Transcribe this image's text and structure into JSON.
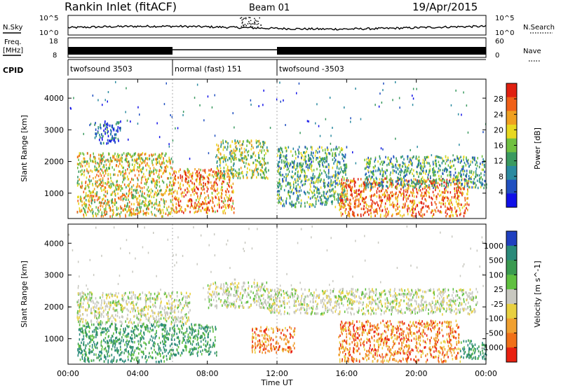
{
  "header": {
    "station": "Rankin Inlet (fitACF)",
    "beam": "Beam 01",
    "date": "19/Apr/2015"
  },
  "top_panels": {
    "nsky": {
      "label": "N.Sky",
      "right_label": "N.Search",
      "tick_top": "10^5",
      "tick_bottom": "10^0",
      "rtick_top": "10^5",
      "rtick_bottom": "10^0"
    },
    "freq": {
      "label_line1": "Freq.",
      "label_line2": "[MHz]",
      "tick_top": "18",
      "tick_bottom": "8",
      "right_label": "Nave",
      "rtick_top": "60",
      "rtick_bottom": "0"
    },
    "cpid": {
      "label": "CPID",
      "segments": [
        {
          "name": "twofsound 3503",
          "start_hour": 0.0,
          "end_hour": 6.0
        },
        {
          "name": "normal (fast) 151",
          "start_hour": 6.0,
          "end_hour": 12.0
        },
        {
          "name": "twofsound -3503",
          "start_hour": 12.0,
          "end_hour": 24.0
        }
      ]
    }
  },
  "chart_data": [
    {
      "type": "heatmap",
      "panel": "power",
      "ylabel": "Slant Range [km]",
      "yticks": [
        "1000",
        "2000",
        "3000",
        "4000"
      ],
      "ylim": [
        200,
        4600
      ],
      "xlim": [
        0,
        24
      ],
      "colorbar_label": "Power [dB]",
      "colorbar_ticks": [
        "4",
        "8",
        "12",
        "16",
        "20",
        "24",
        "28"
      ],
      "colorscale": [
        "#1010e8",
        "#2050c0",
        "#2a8aa0",
        "#3a9a60",
        "#70c040",
        "#e8d820",
        "#f0a020",
        "#f06018",
        "#e02010"
      ],
      "regions": [
        {
          "x": [
            0.5,
            6.0
          ],
          "y": [
            300,
            2300
          ],
          "level": 0.62
        },
        {
          "x": [
            6.0,
            9.5
          ],
          "y": [
            400,
            1800
          ],
          "level": 0.78
        },
        {
          "x": [
            8.5,
            11.5
          ],
          "y": [
            1500,
            2700
          ],
          "level": 0.52
        },
        {
          "x": [
            12.0,
            16.0
          ],
          "y": [
            600,
            2500
          ],
          "level": 0.4
        },
        {
          "x": [
            15.5,
            23.0
          ],
          "y": [
            300,
            1500
          ],
          "level": 0.82
        },
        {
          "x": [
            17.0,
            24.0
          ],
          "y": [
            1200,
            2200
          ],
          "level": 0.38
        },
        {
          "x": [
            1.5,
            3.0
          ],
          "y": [
            2600,
            3300
          ],
          "level": 0.22
        }
      ]
    },
    {
      "type": "heatmap",
      "panel": "velocity",
      "ylabel": "Slant Range [km]",
      "yticks": [
        "1000",
        "2000",
        "3000",
        "4000"
      ],
      "ylim": [
        200,
        4600
      ],
      "xlabel": "Time UT",
      "xticks": [
        "00:00",
        "04:00",
        "08:00",
        "12:00",
        "16:00",
        "20:00",
        "00:00"
      ],
      "xlim": [
        0,
        24
      ],
      "colorbar_label": "Velocity [m s^-1]",
      "colorbar_ticks": [
        "1000",
        "500",
        "100",
        "25",
        "-25",
        "-100",
        "-500",
        "-1000"
      ],
      "colorscale": [
        "#2040c0",
        "#2a8a7a",
        "#3a9a50",
        "#60c040",
        "#c8c8c0",
        "#e8d040",
        "#f0a030",
        "#f07018",
        "#e82010"
      ],
      "regions": [
        {
          "x": [
            0.5,
            7.0
          ],
          "y": [
            1500,
            2500
          ],
          "class": "gray"
        },
        {
          "x": [
            0.5,
            6.0
          ],
          "y": [
            300,
            1500
          ],
          "class": "green"
        },
        {
          "x": [
            6.0,
            8.5
          ],
          "y": [
            500,
            1500
          ],
          "class": "green"
        },
        {
          "x": [
            8.0,
            11.5
          ],
          "y": [
            2000,
            2800
          ],
          "class": "gray"
        },
        {
          "x": [
            11.5,
            23.5
          ],
          "y": [
            1800,
            2600
          ],
          "class": "gray"
        },
        {
          "x": [
            10.5,
            13.0
          ],
          "y": [
            600,
            1400
          ],
          "class": "orange"
        },
        {
          "x": [
            15.5,
            22.5
          ],
          "y": [
            300,
            1600
          ],
          "class": "orange"
        },
        {
          "x": [
            22.5,
            24.0
          ],
          "y": [
            400,
            1000
          ],
          "class": "green"
        }
      ]
    }
  ]
}
